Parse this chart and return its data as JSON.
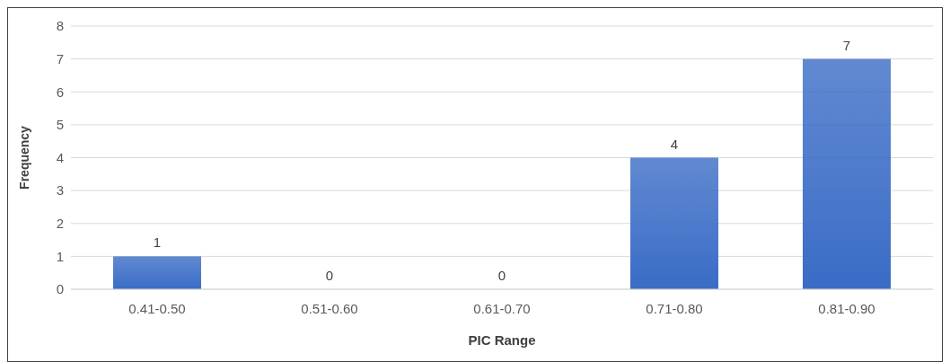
{
  "chart_data": {
    "type": "bar",
    "xlabel": "PIC Range",
    "ylabel": "Frequency",
    "categories": [
      "0.41-0.50",
      "0.51-0.60",
      "0.61-0.70",
      "0.71-0.80",
      "0.81-0.90"
    ],
    "values": [
      1,
      0,
      0,
      4,
      7
    ],
    "color": "#3a6cc6",
    "ylim": [
      0,
      8
    ],
    "yticks": [
      0,
      1,
      2,
      3,
      4,
      5,
      6,
      7,
      8
    ],
    "grid": "y",
    "data_labels": true
  }
}
